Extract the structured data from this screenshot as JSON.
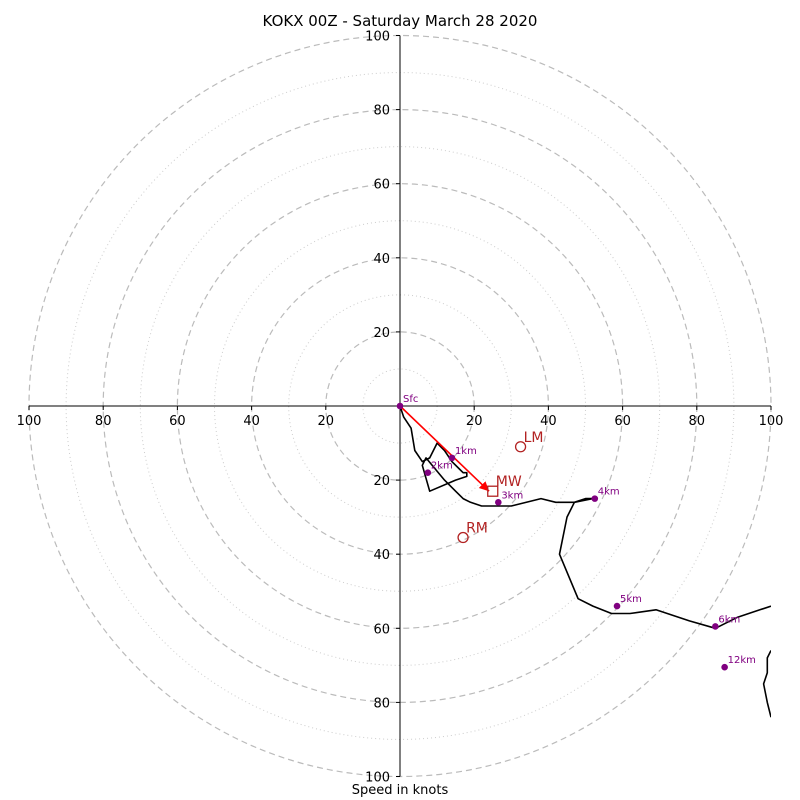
{
  "chart_data": {
    "type": "hodograph",
    "title": "KOKX 00Z - Saturday March 28 2020",
    "xlabel": "Speed in knots",
    "ylabel": "",
    "xlim": [
      -100,
      100
    ],
    "ylim": [
      -100,
      100
    ],
    "rings": {
      "major": [
        20,
        40,
        60,
        80,
        100
      ],
      "minor": [
        10,
        30,
        50,
        70,
        90
      ]
    },
    "x_tick_labels": [
      {
        "value": -100,
        "label": "100"
      },
      {
        "value": -80,
        "label": "80"
      },
      {
        "value": -60,
        "label": "60"
      },
      {
        "value": -40,
        "label": "40"
      },
      {
        "value": -20,
        "label": "20"
      },
      {
        "value": 20,
        "label": "20"
      },
      {
        "value": 40,
        "label": "40"
      },
      {
        "value": 60,
        "label": "60"
      },
      {
        "value": 80,
        "label": "80"
      },
      {
        "value": 100,
        "label": "100"
      }
    ],
    "y_tick_labels": [
      {
        "value": 100,
        "label": "100"
      },
      {
        "value": 80,
        "label": "80"
      },
      {
        "value": 60,
        "label": "60"
      },
      {
        "value": 40,
        "label": "40"
      },
      {
        "value": 20,
        "label": "20"
      },
      {
        "value": -20,
        "label": "20"
      },
      {
        "value": -40,
        "label": "40"
      },
      {
        "value": -60,
        "label": "60"
      },
      {
        "value": -80,
        "label": "80"
      },
      {
        "value": -100,
        "label": "100"
      }
    ],
    "trace": {
      "u": [
        0,
        1,
        3,
        4,
        6,
        8,
        10,
        12,
        14,
        16,
        17,
        18,
        18,
        15,
        8,
        6,
        7,
        12,
        15,
        17,
        19,
        22,
        26,
        30,
        38,
        42,
        47,
        50,
        52,
        47,
        45,
        43,
        48,
        52,
        57,
        62,
        69,
        78,
        85,
        91,
        97,
        100
      ],
      "v": [
        0,
        -3,
        -6,
        -12,
        -15,
        -14,
        -10,
        -12,
        -15,
        -17,
        -18,
        -18,
        -19,
        -20,
        -23,
        -16,
        -14,
        -20,
        -23,
        -25,
        -26,
        -27,
        -27,
        -27,
        -25,
        -26,
        -26,
        -25,
        -25,
        -26,
        -30,
        -40,
        -52,
        -54,
        -56,
        -56,
        -55,
        -58,
        -60,
        -57,
        -55,
        -54
      ],
      "color": "#000000"
    },
    "trace_tail": {
      "u": [
        100,
        99,
        99,
        98,
        99,
        100,
        100
      ],
      "v": [
        -66,
        -68,
        -72,
        -75,
        -80,
        -84,
        -84
      ],
      "color": "#000000"
    },
    "height_points": [
      {
        "label": "Sfc",
        "u": 0,
        "v": 0
      },
      {
        "label": "1km",
        "u": 14,
        "v": -14
      },
      {
        "label": "2km",
        "u": 7.5,
        "v": -18
      },
      {
        "label": "3km",
        "u": 26.5,
        "v": -26
      },
      {
        "label": "4km",
        "u": 52.5,
        "v": -25
      },
      {
        "label": "5km",
        "u": 58.5,
        "v": -54
      },
      {
        "label": "6km",
        "u": 85,
        "v": -59.5
      },
      {
        "label": "12km",
        "u": 87.5,
        "v": -70.5
      }
    ],
    "height_point_color": "#800080",
    "motion_vectors": [
      {
        "label": "LM",
        "u": 32.5,
        "v": -11,
        "marker": "circle"
      },
      {
        "label": "MW",
        "u": 25,
        "v": -23,
        "marker": "square"
      },
      {
        "label": "RM",
        "u": 17,
        "v": -35.5,
        "marker": "circle"
      }
    ],
    "motion_color": "#b22222",
    "arrow": {
      "from": [
        0,
        0
      ],
      "to": [
        24,
        -23
      ],
      "color": "#ff0000"
    },
    "grid": true
  }
}
